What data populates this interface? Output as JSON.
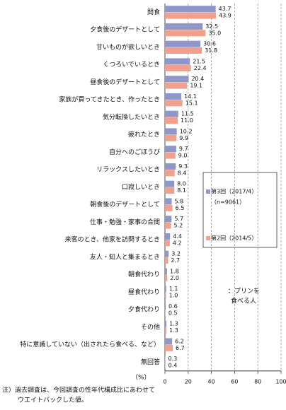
{
  "chart_data": {
    "type": "bar",
    "orientation": "horizontal",
    "categories": [
      "間食",
      "夕食後のデザートとして",
      "甘いものが欲しいとき",
      "くつろいでいるとき",
      "昼食後のデザートとして",
      "家族が買ってきたとき、作ったとき",
      "気分転換したいとき",
      "疲れたとき",
      "自分へのごほうび",
      "リラックスしたいとき",
      "口寂しいとき",
      "朝食後のデザートとして",
      "仕事・勉強・家事の合間",
      "来客のとき、他家を訪問するとき",
      "友人・知人と集まるとき",
      "朝食代わり",
      "昼食代わり",
      "夕食代わり",
      "その他",
      "特に意識していない（出されたら食べる、など）",
      "無回答"
    ],
    "series": [
      {
        "name": "第3回（2017/4）",
        "note": "（n=9061）",
        "color": "#8f97c9",
        "values": [
          43.7,
          32.5,
          30.6,
          21.5,
          20.4,
          14.1,
          11.5,
          10.2,
          9.7,
          9.3,
          8.0,
          5.8,
          5.7,
          4.4,
          3.2,
          1.8,
          1.1,
          0.6,
          1.3,
          6.2,
          0.3
        ],
        "value_labels": [
          "43.7",
          "32.5",
          "30.6",
          "21.5",
          "20.4",
          "14.1",
          "11.5",
          "10.2",
          "9.7",
          "9.3",
          "8.0",
          "5.8",
          "5.7",
          "4.4",
          "3.2",
          "1.8",
          "1.1",
          "0.6",
          "1.3",
          "6.2",
          "0.3"
        ]
      },
      {
        "name": "第2回（2014/5）",
        "color": "#f0a08c",
        "values": [
          43.9,
          35.0,
          31.8,
          22.4,
          19.1,
          15.1,
          11.0,
          9.9,
          9.0,
          8.4,
          8.1,
          6.5,
          5.2,
          4.2,
          2.7,
          2.0,
          1.0,
          0.5,
          1.3,
          6.7,
          0.4
        ],
        "value_labels": [
          "43.9",
          "35.0",
          "31.8",
          "22.4",
          "19.1",
          "15.1",
          "11.0",
          "9.9",
          "9.0",
          "8.4",
          "8.1",
          "6.5",
          "5.2",
          "4.2",
          "2.7",
          "2.0",
          "1.0",
          "0.5",
          "1.3",
          "6.7",
          "0.4"
        ]
      }
    ],
    "xlim": [
      0,
      100
    ],
    "xticks": [
      0,
      20,
      40,
      60,
      80,
      100
    ],
    "grid": true,
    "unit_label": "（%）",
    "annotation": [
      "：プリンを",
      "食べる人"
    ],
    "footnote": [
      "注）過去調査は、今回調査の性年代構成比にあわせて",
      "ウエイトバックした値。"
    ]
  }
}
